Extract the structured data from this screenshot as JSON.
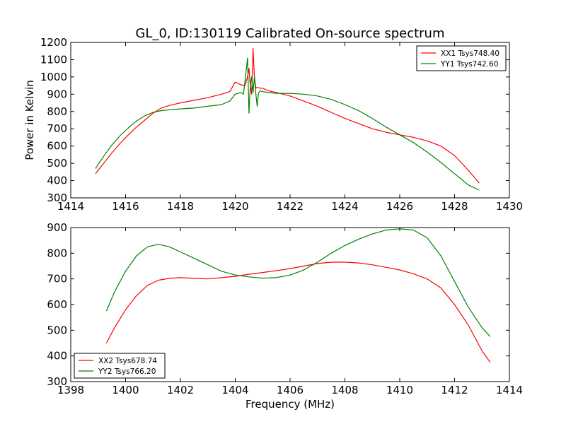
{
  "figure": {
    "title": "GL_0, ID:130119 Calibrated On-source spectrum"
  },
  "chart_data": [
    {
      "type": "line",
      "title": "GL_0, ID:130119 Calibrated On-source spectrum",
      "xlabel": "",
      "ylabel": "Power in Kelvin",
      "xlim": [
        1414,
        1430
      ],
      "ylim": [
        300,
        1200
      ],
      "xticks": [
        1414,
        1416,
        1418,
        1420,
        1422,
        1424,
        1426,
        1428,
        1430
      ],
      "yticks": [
        300,
        400,
        500,
        600,
        700,
        800,
        900,
        1000,
        1100,
        1200
      ],
      "grid": false,
      "legend_position": "top-right",
      "series": [
        {
          "name": "XX1 Tsys748.40",
          "color": "#ff0000",
          "x": [
            1414.9,
            1415.2,
            1415.5,
            1415.8,
            1416.1,
            1416.4,
            1416.7,
            1417.0,
            1417.3,
            1417.6,
            1418.0,
            1418.5,
            1419.0,
            1419.5,
            1419.8,
            1420.0,
            1420.2,
            1420.35,
            1420.45,
            1420.5,
            1420.55,
            1420.6,
            1420.65,
            1420.7,
            1420.75,
            1420.8,
            1420.9,
            1421.0,
            1421.2,
            1421.5,
            1422.0,
            1422.5,
            1423.0,
            1423.5,
            1424.0,
            1424.5,
            1425.0,
            1425.5,
            1426.0,
            1426.5,
            1427.0,
            1427.5,
            1428.0,
            1428.5,
            1428.9
          ],
          "y": [
            440,
            500,
            560,
            615,
            665,
            710,
            750,
            790,
            820,
            835,
            850,
            865,
            880,
            900,
            915,
            970,
            955,
            950,
            1000,
            1050,
            950,
            900,
            1165,
            1000,
            935,
            940,
            935,
            935,
            920,
            910,
            890,
            860,
            830,
            795,
            760,
            730,
            700,
            680,
            665,
            650,
            630,
            600,
            545,
            460,
            385
          ]
        },
        {
          "name": "YY1 Tsys742.60",
          "color": "#008000",
          "x": [
            1414.9,
            1415.2,
            1415.5,
            1415.8,
            1416.1,
            1416.4,
            1416.7,
            1417.0,
            1417.3,
            1417.6,
            1418.0,
            1418.5,
            1419.0,
            1419.5,
            1419.8,
            1420.0,
            1420.2,
            1420.3,
            1420.38,
            1420.45,
            1420.5,
            1420.55,
            1420.6,
            1420.65,
            1420.7,
            1420.75,
            1420.8,
            1420.85,
            1420.9,
            1421.0,
            1421.2,
            1421.5,
            1422.0,
            1422.5,
            1423.0,
            1423.5,
            1424.0,
            1424.5,
            1425.0,
            1425.5,
            1426.0,
            1426.5,
            1427.0,
            1427.5,
            1428.0,
            1428.5,
            1428.9
          ],
          "y": [
            470,
            540,
            605,
            660,
            705,
            745,
            775,
            795,
            805,
            810,
            815,
            820,
            830,
            840,
            860,
            900,
            910,
            900,
            1010,
            1110,
            790,
            950,
            1000,
            910,
            1000,
            905,
            830,
            905,
            920,
            915,
            910,
            905,
            905,
            900,
            890,
            870,
            840,
            805,
            760,
            710,
            665,
            620,
            565,
            505,
            440,
            375,
            345
          ]
        }
      ]
    },
    {
      "type": "line",
      "title": "",
      "xlabel": "Frequency (MHz)",
      "ylabel": "",
      "xlim": [
        1398,
        1414
      ],
      "ylim": [
        300,
        900
      ],
      "xticks": [
        1398,
        1400,
        1402,
        1404,
        1406,
        1408,
        1410,
        1412,
        1414
      ],
      "yticks": [
        300,
        400,
        500,
        600,
        700,
        800,
        900
      ],
      "grid": false,
      "legend_position": "bottom-left",
      "series": [
        {
          "name": "XX2 Tsys678.74",
          "color": "#ff0000",
          "x": [
            1399.3,
            1399.6,
            1400.0,
            1400.4,
            1400.8,
            1401.2,
            1401.6,
            1402.0,
            1402.5,
            1403.0,
            1403.5,
            1404.0,
            1404.5,
            1405.0,
            1405.5,
            1406.0,
            1406.5,
            1407.0,
            1407.5,
            1408.0,
            1408.5,
            1409.0,
            1409.5,
            1410.0,
            1410.5,
            1411.0,
            1411.5,
            1412.0,
            1412.5,
            1413.0,
            1413.3
          ],
          "y": [
            450,
            510,
            580,
            635,
            675,
            695,
            702,
            705,
            702,
            700,
            705,
            710,
            718,
            725,
            732,
            740,
            750,
            760,
            765,
            765,
            762,
            755,
            745,
            735,
            720,
            700,
            665,
            600,
            520,
            420,
            375
          ]
        },
        {
          "name": "YY2 Tsys766.20",
          "color": "#008000",
          "x": [
            1399.3,
            1399.6,
            1400.0,
            1400.4,
            1400.8,
            1401.2,
            1401.6,
            1402.0,
            1402.5,
            1403.0,
            1403.5,
            1404.0,
            1404.5,
            1405.0,
            1405.5,
            1406.0,
            1406.5,
            1407.0,
            1407.5,
            1408.0,
            1408.5,
            1409.0,
            1409.5,
            1410.0,
            1410.5,
            1411.0,
            1411.5,
            1412.0,
            1412.5,
            1413.0,
            1413.3
          ],
          "y": [
            575,
            650,
            730,
            790,
            825,
            835,
            825,
            805,
            780,
            755,
            730,
            715,
            708,
            703,
            705,
            715,
            735,
            765,
            800,
            830,
            855,
            875,
            890,
            895,
            890,
            860,
            790,
            690,
            590,
            510,
            475
          ]
        }
      ]
    }
  ]
}
